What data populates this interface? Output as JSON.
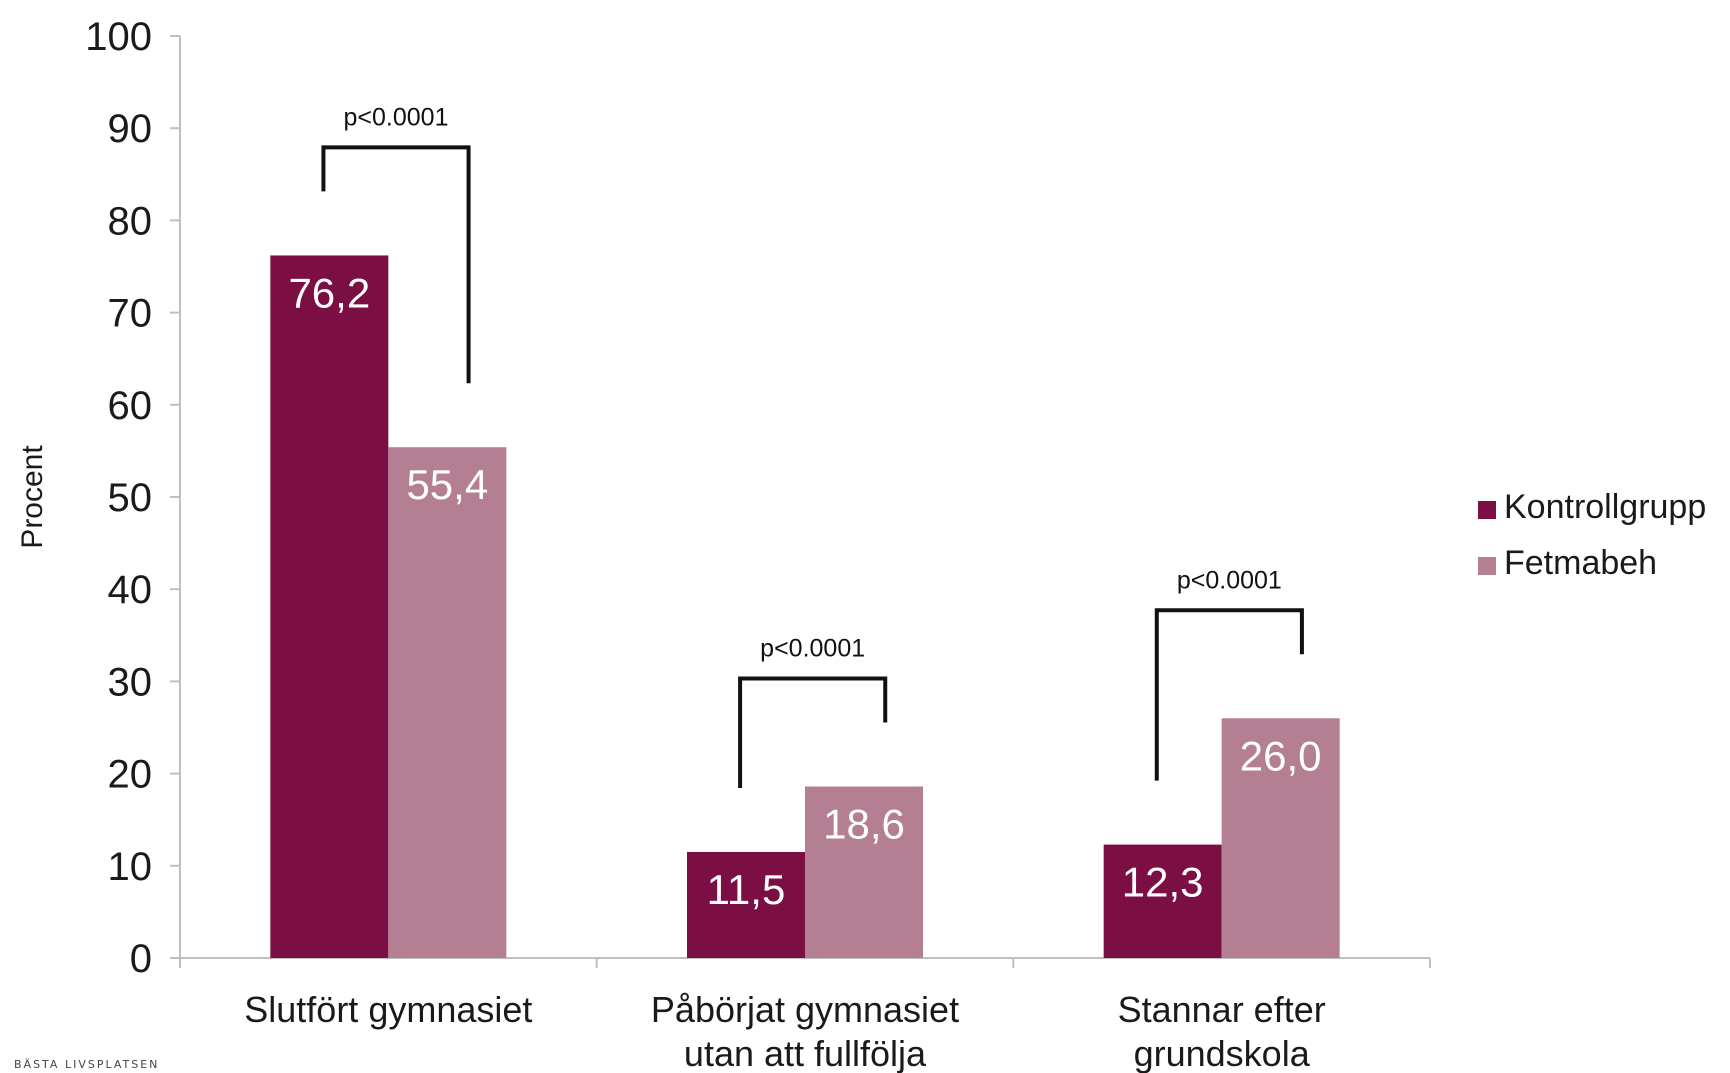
{
  "chart_data": {
    "type": "bar",
    "title": "",
    "xlabel": "",
    "ylabel": "Procent",
    "ylim": [
      0,
      100
    ],
    "yticks": [
      "0",
      "10",
      "20",
      "30",
      "40",
      "50",
      "60",
      "70",
      "80",
      "90",
      "100"
    ],
    "categories": [
      [
        "Slutfört gymnasiet"
      ],
      [
        "Påbörjat gymnasiet",
        "utan att fullfölja"
      ],
      [
        "Stannar efter",
        "grundskola"
      ]
    ],
    "series": [
      {
        "name": "Kontrollgrupp",
        "color": "#7b0f44",
        "values": [
          76.2,
          11.5,
          12.3
        ],
        "labels": [
          "76,2",
          "11,5",
          "12,3"
        ]
      },
      {
        "name": "Fetmabeh",
        "color": "#b47f92",
        "values": [
          55.4,
          18.6,
          26.0
        ],
        "labels": [
          "55,4",
          "18,6",
          "26,0"
        ]
      }
    ],
    "annotations": [
      {
        "category": 0,
        "text": "p<0.0001"
      },
      {
        "category": 1,
        "text": "p<0.0001"
      },
      {
        "category": 2,
        "text": "p<0.0001"
      }
    ],
    "legend": "right",
    "grid": false
  },
  "footer": {
    "text": "BÄSTA LIVSPLATSEN"
  }
}
